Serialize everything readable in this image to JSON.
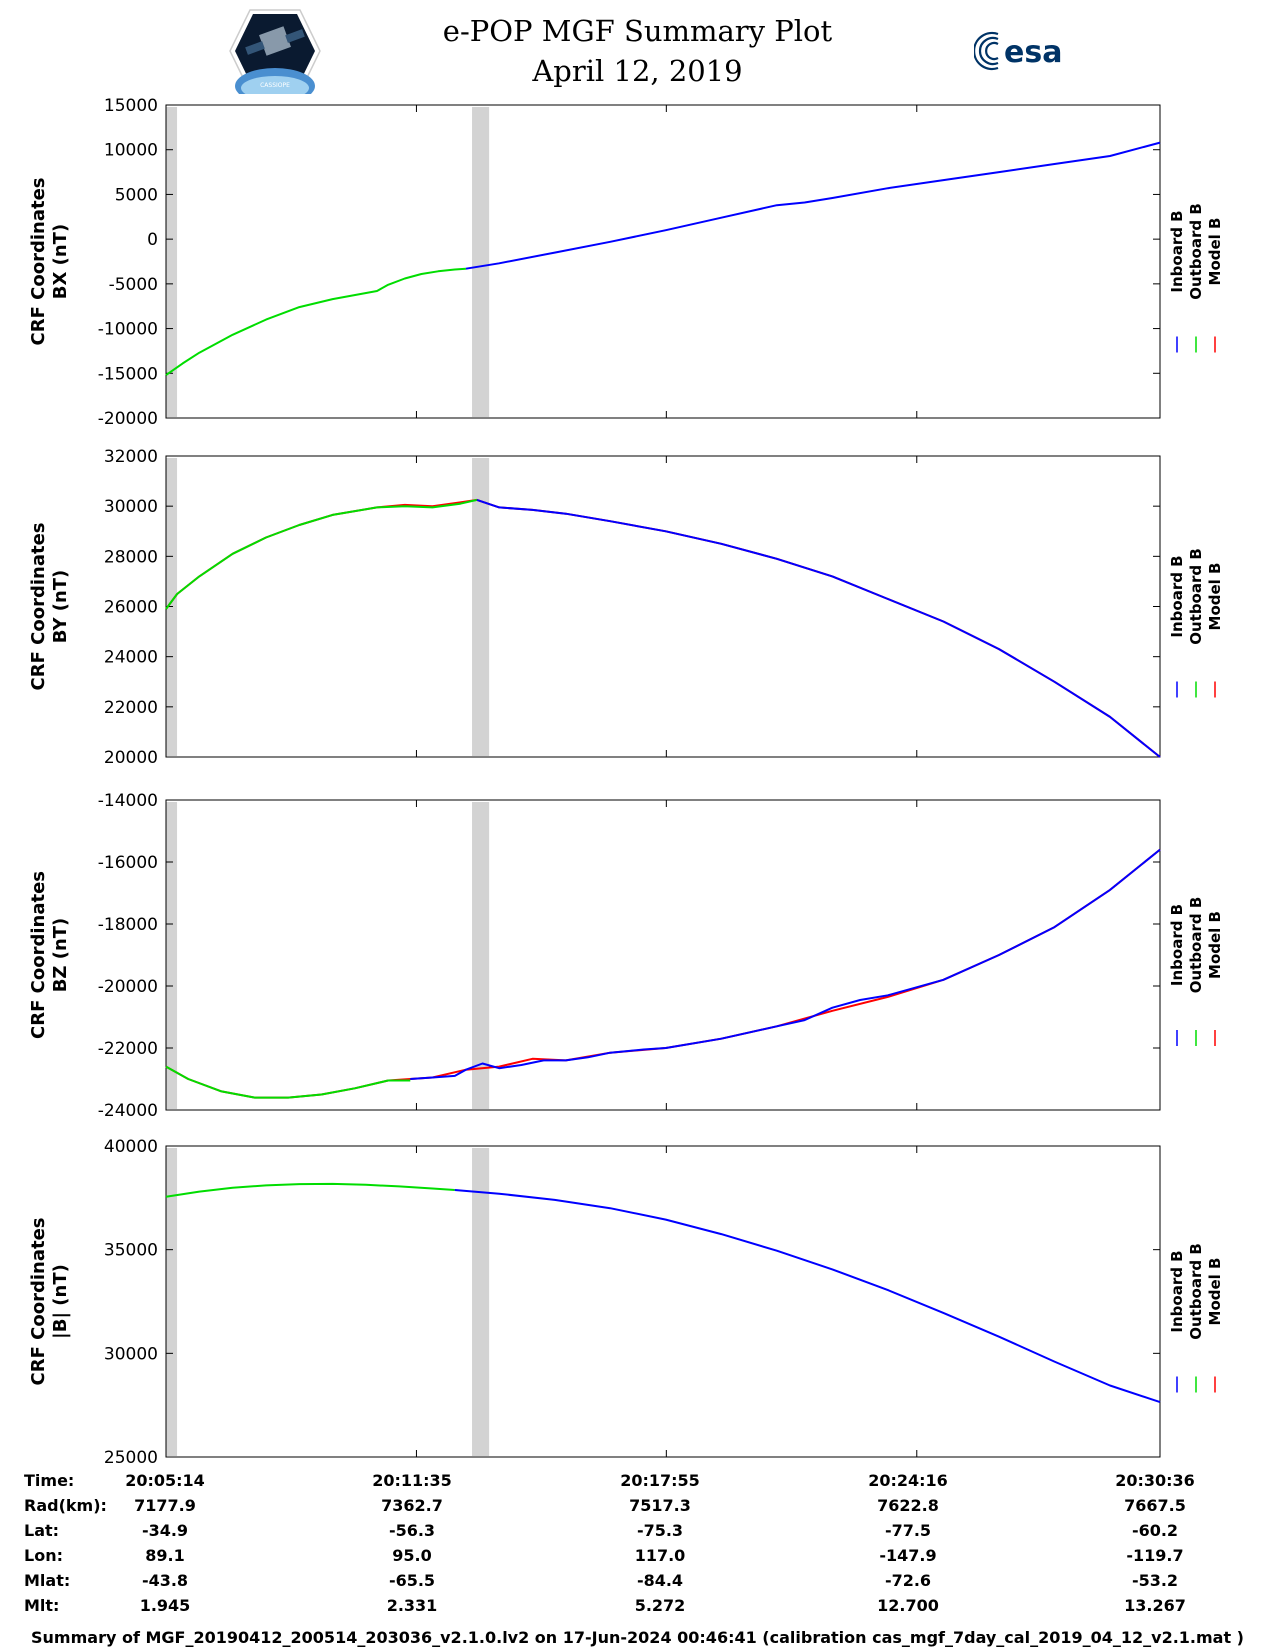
{
  "header": {
    "title": "e-POP MGF Summary Plot",
    "date": "April 12, 2019",
    "logo_left_text": "CASSIOPE",
    "logo_right_text": "esa"
  },
  "colors": {
    "inboard": "#0000ff",
    "outboard": "#00dd00",
    "model": "#ff0000",
    "gap": "#d3d3d3"
  },
  "chart_data": [
    {
      "type": "line",
      "ylabel_line1": "CRF Coordinates",
      "ylabel_line2": "BX (nT)",
      "ylim": [
        -20000,
        15000
      ],
      "yticks": [
        15000,
        10000,
        5000,
        0,
        -5000,
        -10000,
        -15000,
        -20000
      ],
      "ytick_labels": [
        "15000",
        "10000",
        "5000",
        "0",
        "-5000",
        "-10000",
        "-15000",
        "-20000"
      ],
      "legend": [
        "Inboard B",
        "Outboard B",
        "Model B"
      ],
      "series": [
        {
          "name": "Outboard B",
          "color": "#00dd00",
          "x": [
            0,
            30,
            60,
            120,
            180,
            240,
            300,
            380,
            400,
            430,
            460,
            490,
            520,
            540
          ],
          "y": [
            -15200,
            -13900,
            -12700,
            -10700,
            -9000,
            -7600,
            -6700,
            -5800,
            -5100,
            -4400,
            -3900,
            -3600,
            -3400,
            -3300
          ]
        },
        {
          "name": "Inboard B",
          "color": "#0000ff",
          "x": [
            540,
            600,
            700,
            800,
            900,
            1000,
            1100,
            1150,
            1200,
            1300,
            1400,
            1500,
            1600,
            1700,
            1790
          ],
          "y": [
            -3300,
            -2700,
            -1500,
            -300,
            1000,
            2400,
            3800,
            4100,
            4600,
            5700,
            6600,
            7500,
            8400,
            9300,
            10800
          ]
        }
      ]
    },
    {
      "type": "line",
      "ylabel_line1": "CRF Coordinates",
      "ylabel_line2": "BY (nT)",
      "ylim": [
        20000,
        32000
      ],
      "yticks": [
        32000,
        30000,
        28000,
        26000,
        24000,
        22000,
        20000
      ],
      "ytick_labels": [
        "32000",
        "30000",
        "28000",
        "26000",
        "24000",
        "22000",
        "20000"
      ],
      "legend": [
        "Inboard B",
        "Outboard B",
        "Model B"
      ],
      "series": [
        {
          "name": "Model B",
          "color": "#ff0000",
          "x": [
            0,
            20,
            60,
            120,
            180,
            240,
            300,
            380,
            430,
            480,
            530,
            560,
            600,
            660,
            720,
            800,
            900,
            1000,
            1100,
            1200,
            1300,
            1400,
            1500,
            1600,
            1700,
            1790
          ],
          "y": [
            25900,
            26500,
            27200,
            28100,
            28750,
            29250,
            29650,
            29950,
            30050,
            30000,
            30150,
            30250,
            29950,
            29850,
            29700,
            29400,
            29000,
            28500,
            27900,
            27200,
            26300,
            25400,
            24300,
            23000,
            21600,
            20000
          ]
        },
        {
          "name": "Outboard B",
          "color": "#00dd00",
          "x": [
            0,
            20,
            60,
            120,
            180,
            240,
            300,
            380,
            430,
            480,
            530,
            560
          ],
          "y": [
            25900,
            26500,
            27200,
            28100,
            28750,
            29250,
            29650,
            29950,
            30000,
            29950,
            30100,
            30250
          ]
        },
        {
          "name": "Inboard B",
          "color": "#0000ff",
          "x": [
            560,
            600,
            660,
            720,
            800,
            900,
            1000,
            1100,
            1200,
            1300,
            1400,
            1500,
            1600,
            1700,
            1790
          ],
          "y": [
            30250,
            29950,
            29850,
            29700,
            29400,
            29000,
            28500,
            27900,
            27200,
            26300,
            25400,
            24300,
            23000,
            21600,
            20000
          ]
        }
      ]
    },
    {
      "type": "line",
      "ylabel_line1": "CRF Coordinates",
      "ylabel_line2": "BZ (nT)",
      "ylim": [
        -24000,
        -14000
      ],
      "yticks": [
        -14000,
        -16000,
        -18000,
        -20000,
        -22000,
        -24000
      ],
      "ytick_labels": [
        "-14000",
        "-16000",
        "-18000",
        "-20000",
        "-22000",
        "-24000"
      ],
      "legend": [
        "Inboard B",
        "Outboard B",
        "Model B"
      ],
      "series": [
        {
          "name": "Model B",
          "color": "#ff0000",
          "x": [
            0,
            40,
            100,
            160,
            220,
            280,
            340,
            400,
            440,
            480,
            540,
            600,
            660,
            720,
            800,
            900,
            1000,
            1100,
            1200,
            1300,
            1400,
            1500,
            1600,
            1700,
            1790
          ],
          "y": [
            -22600,
            -23000,
            -23400,
            -23600,
            -23600,
            -23500,
            -23300,
            -23050,
            -23000,
            -22950,
            -22700,
            -22600,
            -22350,
            -22400,
            -22150,
            -22000,
            -21700,
            -21300,
            -20800,
            -20350,
            -19800,
            -19000,
            -18100,
            -16900,
            -15600
          ]
        },
        {
          "name": "Outboard B",
          "color": "#00dd00",
          "x": [
            0,
            40,
            100,
            160,
            220,
            280,
            340,
            400,
            440
          ],
          "y": [
            -22600,
            -23000,
            -23400,
            -23600,
            -23600,
            -23500,
            -23300,
            -23050,
            -23050
          ]
        },
        {
          "name": "Inboard B",
          "color": "#0000ff",
          "x": [
            440,
            480,
            520,
            540,
            570,
            600,
            640,
            680,
            720,
            760,
            800,
            860,
            900,
            1000,
            1100,
            1150,
            1200,
            1250,
            1300,
            1400,
            1500,
            1600,
            1700,
            1790
          ],
          "y": [
            -23000,
            -22950,
            -22900,
            -22700,
            -22500,
            -22650,
            -22550,
            -22400,
            -22400,
            -22300,
            -22150,
            -22050,
            -22000,
            -21700,
            -21300,
            -21100,
            -20700,
            -20450,
            -20300,
            -19800,
            -19000,
            -18100,
            -16900,
            -15600
          ]
        }
      ]
    },
    {
      "type": "line",
      "ylabel_line1": "CRF Coordinates",
      "ylabel_line2": "|B| (nT)",
      "ylim": [
        25000,
        40000
      ],
      "yticks": [
        40000,
        35000,
        30000,
        25000
      ],
      "ytick_labels": [
        "40000",
        "35000",
        "30000",
        "25000"
      ],
      "legend": [
        "Inboard B",
        "Outboard B",
        "Model B"
      ],
      "series": [
        {
          "name": "Outboard B",
          "color": "#00dd00",
          "x": [
            0,
            60,
            120,
            180,
            240,
            300,
            360,
            420,
            480,
            520
          ],
          "y": [
            37550,
            37800,
            37990,
            38100,
            38160,
            38170,
            38130,
            38050,
            37950,
            37880
          ]
        },
        {
          "name": "Inboard B",
          "color": "#0000ff",
          "x": [
            520,
            600,
            700,
            800,
            900,
            1000,
            1100,
            1200,
            1300,
            1400,
            1500,
            1600,
            1700,
            1790
          ],
          "y": [
            37880,
            37700,
            37400,
            37000,
            36450,
            35750,
            34950,
            34050,
            33050,
            31950,
            30800,
            29600,
            28450,
            27650
          ]
        }
      ]
    }
  ],
  "x_axis": {
    "xlim": [
      0,
      1790
    ],
    "tick_positions": [
      0,
      451,
      901,
      1352,
      1790
    ],
    "gap_bars": [
      0,
      10,
      552,
      562,
      572
    ]
  },
  "info_table": {
    "rows": [
      {
        "label": "Time:",
        "values": [
          "20:05:14",
          "20:11:35",
          "20:17:55",
          "20:24:16",
          "20:30:36"
        ]
      },
      {
        "label": "Rad(km):",
        "values": [
          "7177.9",
          "7362.7",
          "7517.3",
          "7622.8",
          "7667.5"
        ]
      },
      {
        "label": "Lat:",
        "values": [
          "-34.9",
          "-56.3",
          "-75.3",
          "-77.5",
          "-60.2"
        ]
      },
      {
        "label": "Lon:",
        "values": [
          "89.1",
          "95.0",
          "117.0",
          "-147.9",
          "-119.7"
        ]
      },
      {
        "label": "Mlat:",
        "values": [
          "-43.8",
          "-65.5",
          "-84.4",
          "-72.6",
          "-53.2"
        ]
      },
      {
        "label": "Mlt:",
        "values": [
          "1.945",
          "2.331",
          "5.272",
          "12.700",
          "13.267"
        ]
      }
    ]
  },
  "footer": "Summary of MGF_20190412_200514_203036_v2.1.0.lv2 on 17-Jun-2024 00:46:41 (calibration cas_mgf_7day_cal_2019_04_12_v2.1.mat )"
}
